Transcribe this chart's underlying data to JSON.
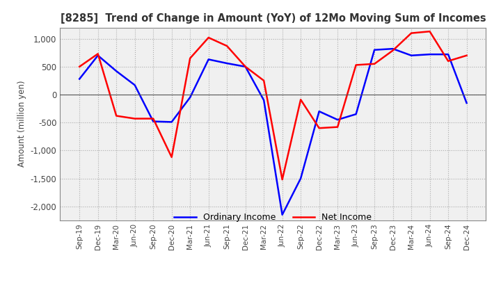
{
  "title": "[8285]  Trend of Change in Amount (YoY) of 12Mo Moving Sum of Incomes",
  "ylabel": "Amount (million yen)",
  "x_labels": [
    "Sep-19",
    "Dec-19",
    "Mar-20",
    "Jun-20",
    "Sep-20",
    "Dec-20",
    "Mar-21",
    "Jun-21",
    "Sep-21",
    "Dec-21",
    "Mar-22",
    "Jun-22",
    "Sep-22",
    "Dec-22",
    "Mar-23",
    "Jun-23",
    "Sep-23",
    "Dec-23",
    "Mar-24",
    "Jun-24",
    "Sep-24",
    "Dec-24"
  ],
  "ordinary_income": [
    280,
    700,
    420,
    170,
    -480,
    -490,
    -50,
    630,
    560,
    500,
    -100,
    -2150,
    -1500,
    -300,
    -450,
    -350,
    800,
    820,
    700,
    720,
    720,
    -150
  ],
  "net_income": [
    500,
    730,
    -380,
    -430,
    -430,
    -1120,
    650,
    1020,
    870,
    500,
    250,
    -1520,
    -90,
    -600,
    -580,
    530,
    550,
    790,
    1100,
    1130,
    600,
    700
  ],
  "ordinary_color": "#0000ff",
  "net_color": "#ff0000",
  "ylim_low": -2250,
  "ylim_high": 1200,
  "yticks": [
    -2000,
    -1500,
    -1000,
    -500,
    0,
    500,
    1000
  ],
  "bg_color": "#f0f0f0",
  "grid_color": "#aaaaaa"
}
